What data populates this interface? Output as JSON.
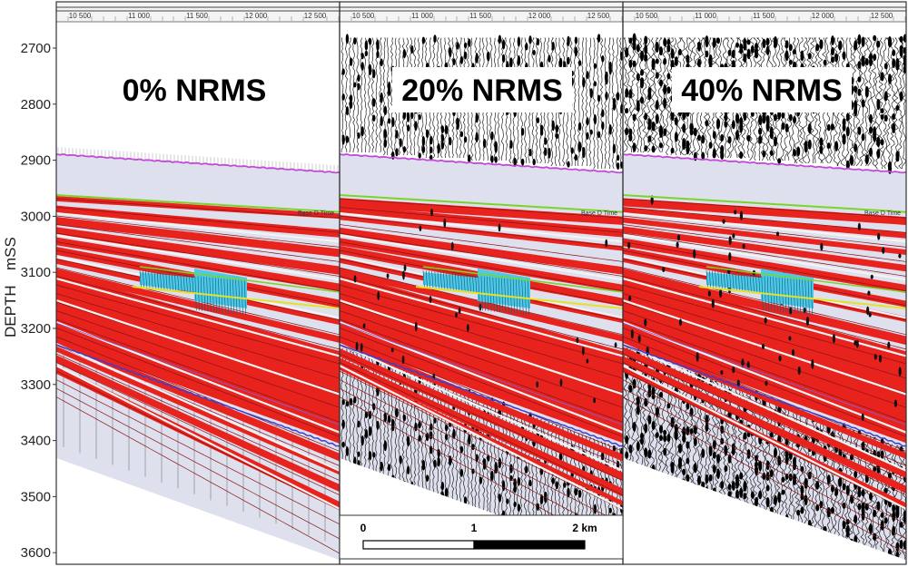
{
  "y_axis": {
    "title_left": "DEPTH",
    "title_right": "mSS",
    "ticks": [
      "2700",
      "2800",
      "2900",
      "3000",
      "3100",
      "3200",
      "3300",
      "3400",
      "3500",
      "3600"
    ]
  },
  "x_ticks": [
    "10 500",
    "11 000",
    "11 500",
    "12 000",
    "12 500"
  ],
  "panels": [
    {
      "title": "0% NRMS",
      "noise": 0.0
    },
    {
      "title": "20% NRMS",
      "noise": 0.2
    },
    {
      "title": "40% NRMS",
      "noise": 0.4
    }
  ],
  "horizon_label": "Base D Time",
  "scale_bar": {
    "labels": [
      "0",
      "1",
      "2 km"
    ]
  },
  "colors": {
    "reservoir": "#e8231e",
    "background_fill": "#dfe0ee",
    "top_horizon": "#c24ad6",
    "green_horizon": "#7ad42a",
    "yellow_horizon": "#e4e223",
    "blue_horizon": "#3a3fd2",
    "injection_body": "#4fc8e8",
    "wiggle": "#000000"
  }
}
